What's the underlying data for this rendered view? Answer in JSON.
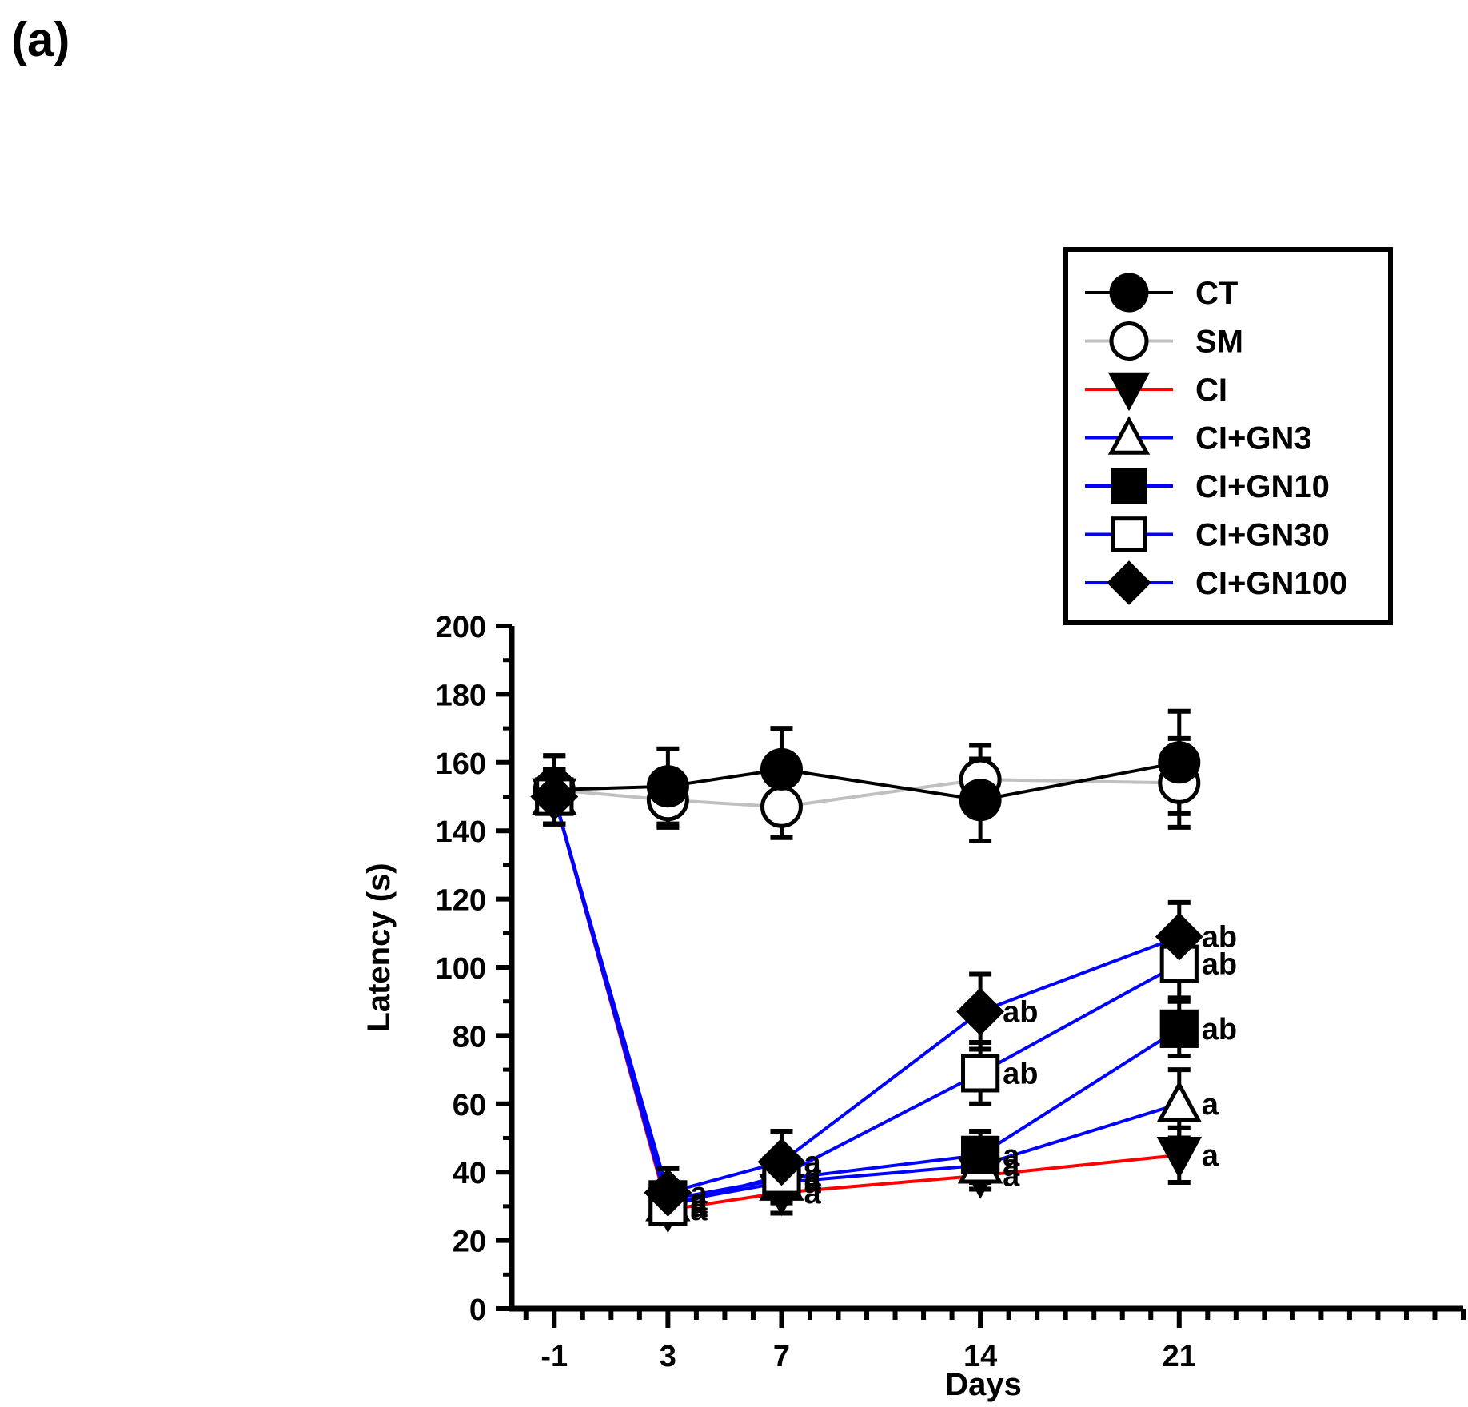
{
  "panel_label": "(a)",
  "chart_data": {
    "type": "line",
    "title": "",
    "xlabel": "Days",
    "ylabel": "Latency (s)",
    "x": [
      -1,
      3,
      7,
      14,
      21
    ],
    "x_tick_labels": [
      "-1",
      "3",
      "7",
      "14",
      "21"
    ],
    "x_range": [
      -2.5,
      31
    ],
    "ylim": [
      0,
      200
    ],
    "y_ticks": [
      0,
      20,
      40,
      60,
      80,
      100,
      120,
      140,
      160,
      180,
      200
    ],
    "grid": false,
    "legend_position": "top-right",
    "series": [
      {
        "name": "CT",
        "color": "#000000",
        "marker": "circle-filled",
        "values": [
          152,
          153,
          158,
          149,
          160
        ],
        "errors": [
          10,
          11,
          12,
          12,
          15
        ],
        "annotations": [
          "",
          "",
          "",
          "",
          ""
        ]
      },
      {
        "name": "SM",
        "color": "#c0c0c0",
        "marker": "circle-open",
        "values": [
          152,
          149,
          147,
          155,
          154
        ],
        "errors": [
          10,
          8,
          9,
          10,
          13
        ],
        "annotations": [
          "",
          "",
          "",
          "",
          ""
        ]
      },
      {
        "name": "CI",
        "color": "#ff0000",
        "marker": "triangle-down-filled",
        "values": [
          150,
          29,
          34,
          39,
          45
        ],
        "errors": [
          8,
          4,
          6,
          4,
          8
        ],
        "annotations": [
          "",
          "a",
          "a",
          "a",
          "a"
        ]
      },
      {
        "name": "CI+GN3",
        "color": "#0000ff",
        "marker": "triangle-up-open",
        "values": [
          150,
          31,
          37,
          42,
          60
        ],
        "errors": [
          8,
          4,
          6,
          5,
          10
        ],
        "annotations": [
          "",
          "a",
          "a",
          "a",
          "a"
        ]
      },
      {
        "name": "CI+GN10",
        "color": "#0000ff",
        "marker": "square-filled",
        "values": [
          150,
          32,
          38,
          45,
          82
        ],
        "errors": [
          8,
          4,
          6,
          7,
          8
        ],
        "annotations": [
          "",
          "a",
          "a",
          "a",
          "ab"
        ]
      },
      {
        "name": "CI+GN30",
        "color": "#0000ff",
        "marker": "square-open",
        "values": [
          150,
          30,
          39,
          69,
          101
        ],
        "errors": [
          8,
          4,
          6,
          9,
          10
        ],
        "annotations": [
          "",
          "a",
          "a",
          "ab",
          "ab"
        ]
      },
      {
        "name": "CI+GN100",
        "color": "#0000ff",
        "marker": "diamond-filled",
        "values": [
          150,
          34,
          43,
          87,
          109
        ],
        "errors": [
          8,
          7,
          9,
          11,
          10
        ],
        "annotations": [
          "",
          "a",
          "a",
          "ab",
          "ab"
        ]
      }
    ]
  }
}
